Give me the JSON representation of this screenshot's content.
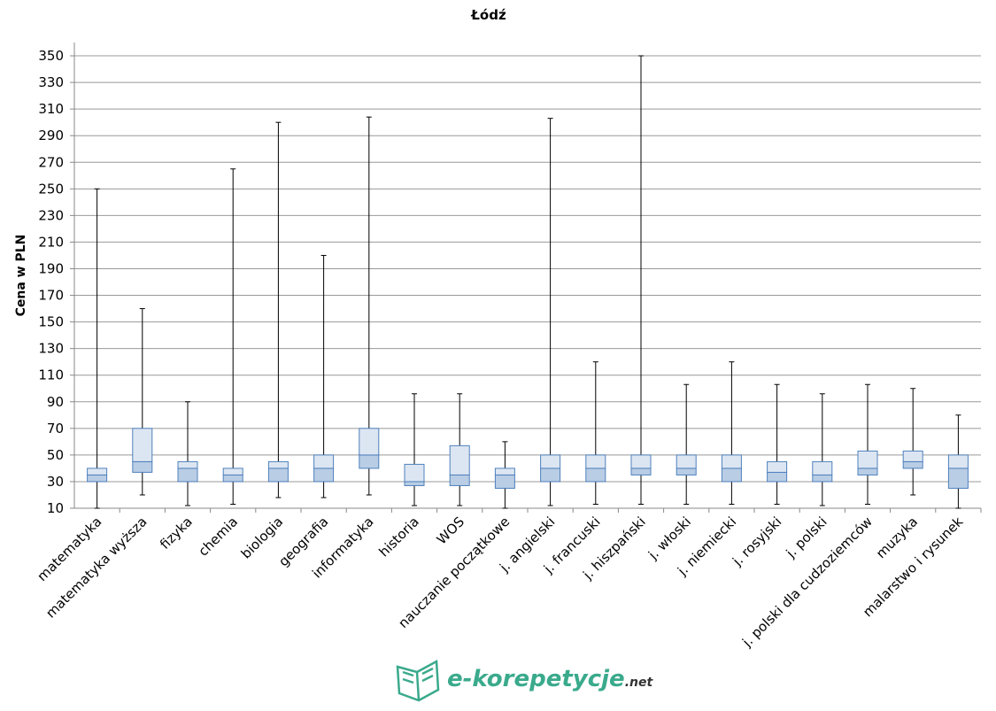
{
  "chart_data": {
    "type": "box",
    "title": "Łódź",
    "y_label": "Cena w PLN",
    "categories": [
      "matematyka",
      "matematyka wyższa",
      "fizyka",
      "chemia",
      "biologia",
      "geografia",
      "informatyka",
      "historia",
      "WOS",
      "nauczanie początkowe",
      "j. angielski",
      "j. francuski",
      "j. hiszpański",
      "j. włoski",
      "j. niemiecki",
      "j. rosyjski",
      "j. polski",
      "j. polski dla cudzoziemców",
      "muzyka",
      "malarstwo i rysunek"
    ],
    "min": [
      10,
      20,
      12,
      13,
      18,
      18,
      20,
      12,
      12,
      10,
      12,
      13,
      13,
      13,
      13,
      13,
      12,
      13,
      20,
      10
    ],
    "q1": [
      30,
      37,
      30,
      30,
      30,
      30,
      40,
      27,
      27,
      25,
      30,
      30,
      35,
      35,
      30,
      30,
      30,
      35,
      40,
      25
    ],
    "median": [
      35,
      45,
      40,
      35,
      40,
      40,
      50,
      30,
      35,
      35,
      40,
      40,
      40,
      40,
      40,
      37,
      35,
      40,
      45,
      40
    ],
    "q3": [
      40,
      70,
      45,
      40,
      45,
      50,
      70,
      43,
      57,
      40,
      50,
      50,
      50,
      50,
      50,
      45,
      45,
      53,
      53,
      50
    ],
    "max": [
      250,
      160,
      90,
      265,
      300,
      200,
      304,
      96,
      96,
      60,
      303,
      120,
      350,
      103,
      120,
      103,
      96,
      103,
      100,
      80
    ],
    "lower_color": "#b9cde5",
    "upper_color": "#dce6f2",
    "edge_color": "#4f81bd",
    "ylim": [
      10,
      360
    ],
    "yticks": [
      10,
      30,
      50,
      70,
      90,
      110,
      130,
      150,
      170,
      190,
      210,
      230,
      250,
      270,
      290,
      310,
      330,
      350
    ],
    "grid": true
  },
  "logo": {
    "text": "e-korepetycje",
    "suffix": ".net"
  }
}
